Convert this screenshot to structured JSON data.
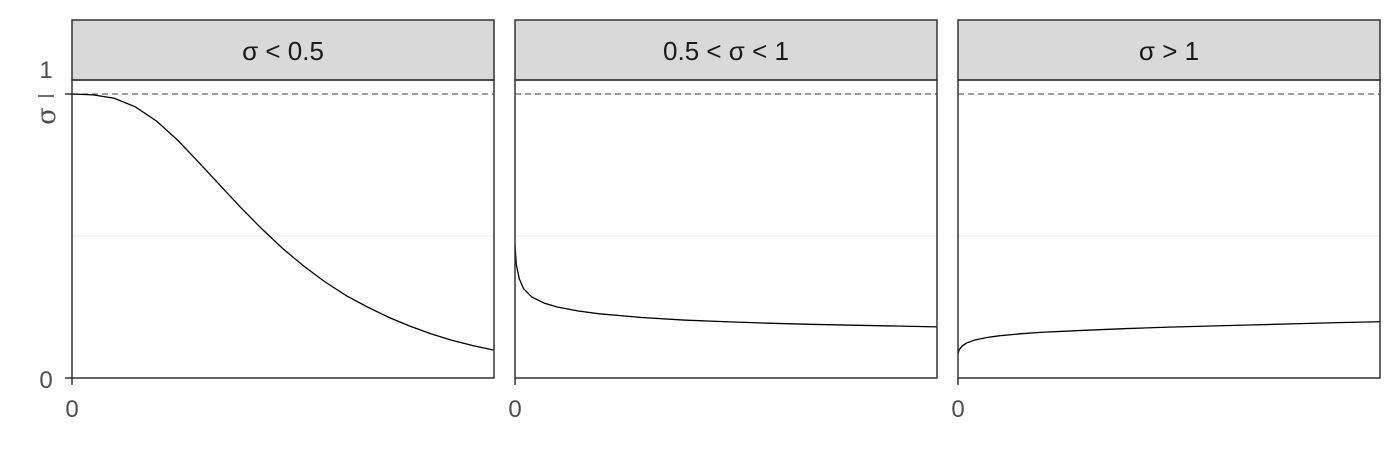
{
  "chart_data": {
    "type": "line",
    "facets": [
      {
        "strip_label": "σ < 0.5",
        "x": [
          0,
          0.05,
          0.1,
          0.15,
          0.2,
          0.25,
          0.3,
          0.35,
          0.4,
          0.45,
          0.5,
          0.55,
          0.6,
          0.65,
          0.7,
          0.75,
          0.8,
          0.85,
          0.9,
          0.95,
          1
        ],
        "y": [
          1.0,
          0.997,
          0.985,
          0.955,
          0.905,
          0.838,
          0.76,
          0.68,
          0.6,
          0.525,
          0.455,
          0.393,
          0.338,
          0.29,
          0.25,
          0.214,
          0.183,
          0.156,
          0.133,
          0.114,
          0.098
        ]
      },
      {
        "strip_label": "0.5 < σ < 1",
        "x": [
          0,
          0.003,
          0.01,
          0.02,
          0.04,
          0.07,
          0.1,
          0.15,
          0.2,
          0.3,
          0.4,
          0.5,
          0.6,
          0.7,
          0.8,
          0.9,
          1
        ],
        "y": [
          0.47,
          0.4,
          0.35,
          0.315,
          0.285,
          0.263,
          0.25,
          0.236,
          0.226,
          0.213,
          0.204,
          0.198,
          0.193,
          0.189,
          0.186,
          0.183,
          0.18
        ]
      },
      {
        "strip_label": "σ > 1",
        "x": [
          0,
          0.003,
          0.01,
          0.02,
          0.04,
          0.07,
          0.1,
          0.15,
          0.2,
          0.3,
          0.4,
          0.5,
          0.6,
          0.7,
          0.8,
          0.9,
          1
        ],
        "y": [
          0.085,
          0.1,
          0.113,
          0.123,
          0.134,
          0.143,
          0.149,
          0.156,
          0.161,
          0.168,
          0.174,
          0.179,
          0.183,
          0.187,
          0.191,
          0.195,
          0.198
        ]
      }
    ],
    "ylim": [
      0,
      1.05
    ],
    "xlim": [
      0,
      1
    ],
    "y_ticks": [
      "0",
      "1"
    ],
    "y_tick_fraction": {
      "numerator": "1",
      "denominator": "σ"
    },
    "x_ticks": [
      "0"
    ],
    "reference_line": {
      "y": 1,
      "style": "dashed"
    },
    "colors": {
      "line": "#000000",
      "strip_bg": "#d9d9d9",
      "frame": "#333333",
      "grid": "#ebebeb",
      "ref": "#666666"
    }
  }
}
